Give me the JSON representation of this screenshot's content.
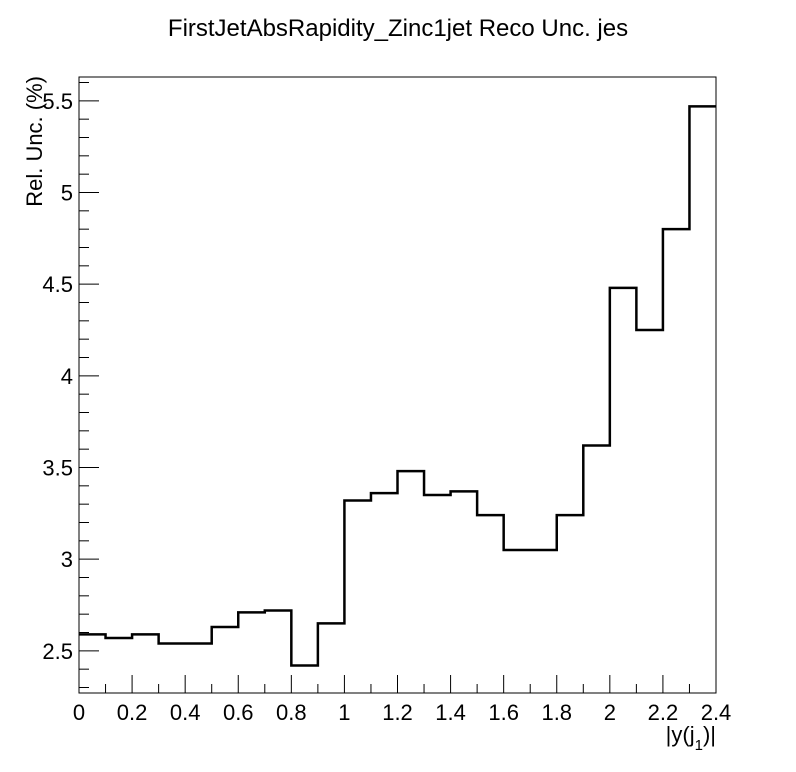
{
  "chart_data": {
    "type": "line",
    "style": "step-histogram",
    "title": "FirstJetAbsRapidity_Zinc1jet Reco Unc. jes",
    "xlabel": "|y(j",
    "xlabel_sub": "1",
    "xlabel_end": ")|",
    "ylabel": "Rel. Unc. (%)",
    "xlim": [
      0,
      2.4
    ],
    "ylim": [
      2.27,
      5.63
    ],
    "x_ticks": [
      0,
      0.2,
      0.4,
      0.6,
      0.8,
      1,
      1.2,
      1.4,
      1.6,
      1.8,
      2,
      2.2,
      2.4
    ],
    "x_tick_labels": [
      "0",
      "0.2",
      "0.4",
      "0.6",
      "0.8",
      "1",
      "1.2",
      "1.4",
      "1.6",
      "1.8",
      "2",
      "2.2",
      "2.4"
    ],
    "y_ticks": [
      2.5,
      3,
      3.5,
      4,
      4.5,
      5,
      5.5
    ],
    "y_tick_labels": [
      "2.5",
      "3",
      "3.5",
      "4",
      "4.5",
      "5",
      "5.5"
    ],
    "grid": false,
    "legend": "none",
    "line_color": "#000000",
    "bin_edges": [
      0,
      0.1,
      0.2,
      0.3,
      0.4,
      0.5,
      0.6,
      0.7,
      0.8,
      0.9,
      1.0,
      1.1,
      1.2,
      1.3,
      1.4,
      1.5,
      1.6,
      1.7,
      1.8,
      1.9,
      2.0,
      2.1,
      2.2,
      2.3,
      2.4
    ],
    "values": [
      2.59,
      2.57,
      2.59,
      2.54,
      2.54,
      2.63,
      2.71,
      2.72,
      2.42,
      2.65,
      3.32,
      3.36,
      3.48,
      3.35,
      3.37,
      3.24,
      3.05,
      3.05,
      3.24,
      3.62,
      4.48,
      4.25,
      4.8,
      5.47
    ]
  }
}
